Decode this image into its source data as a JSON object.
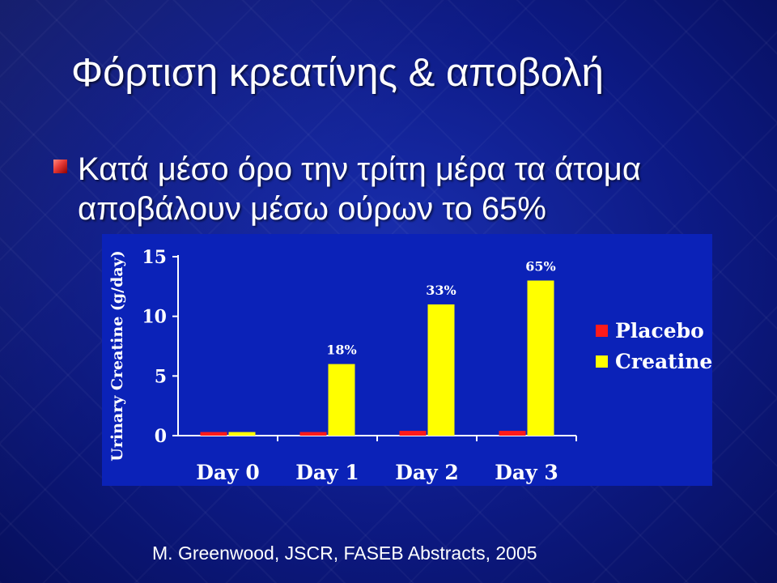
{
  "slide": {
    "title": "Φόρτιση κρεατίνης & αποβολή",
    "bullet_line1": "Κατά μέσο όρο την τρίτη μέρα τα άτομα",
    "bullet_line2": "αποβάλουν μέσω ούρων το 65%",
    "citation": "M. Greenwood, JSCR, FASEB Abstracts, 2005"
  },
  "colors": {
    "placebo": "#ff1a1a",
    "creatine": "#ffff00",
    "chart_bg": "#0b22b8",
    "text": "#ffffff"
  },
  "chart_data": {
    "type": "bar",
    "categories": [
      "Day 0",
      "Day 1",
      "Day 2",
      "Day 3"
    ],
    "series": [
      {
        "name": "Placebo",
        "values": [
          0.3,
          0.3,
          0.4,
          0.4
        ]
      },
      {
        "name": "Creatine",
        "values": [
          0.3,
          6,
          11,
          13
        ]
      }
    ],
    "annotations": [
      null,
      "18%",
      "33%",
      "65%"
    ],
    "ylabel": "Urinary Creatine (g/day)",
    "yticks": [
      0,
      5,
      10,
      15
    ],
    "ylim": [
      0,
      15
    ],
    "legend_position": "right"
  }
}
